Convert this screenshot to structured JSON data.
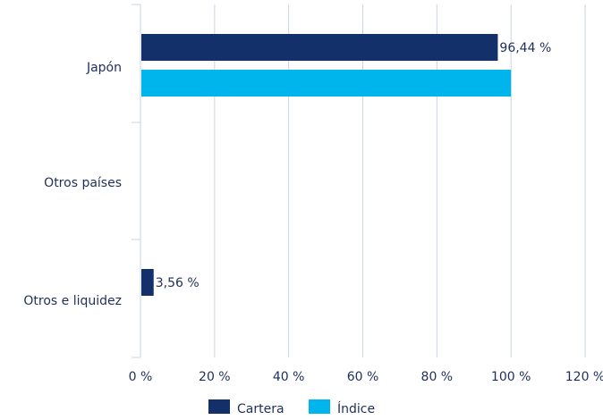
{
  "chart_data": {
    "type": "bar",
    "orientation": "horizontal",
    "categories": [
      "Japón",
      "Otros países",
      "Otros e liquidez"
    ],
    "series": [
      {
        "name": "Cartera",
        "values": [
          96.44,
          0,
          3.56
        ],
        "color": "#14306b"
      },
      {
        "name": "Índice",
        "values": [
          100,
          0,
          0
        ],
        "color": "#00b4ec"
      }
    ],
    "data_labels": [
      {
        "series": 0,
        "category": 0,
        "text": "96,44 %"
      },
      {
        "series": 0,
        "category": 2,
        "text": "3,56 %"
      }
    ],
    "xlim": [
      0,
      120
    ],
    "xticks": [
      "0 %",
      "20 %",
      "40 %",
      "60 %",
      "80 %",
      "100 %",
      "120 %"
    ],
    "grid": "vertical",
    "legend_position": "bottom"
  }
}
